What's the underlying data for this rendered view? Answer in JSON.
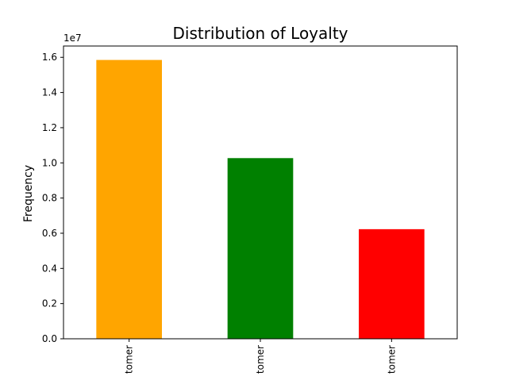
{
  "chart_data": {
    "type": "bar",
    "title": "Distribution of Loyalty",
    "xlabel": "",
    "ylabel": "Frequency",
    "y_offset_label": "1e7",
    "categories": [
      "tomer",
      "tomer",
      "tomer"
    ],
    "values": [
      15850000,
      10270000,
      6230000
    ],
    "bar_colors": [
      "#ffa500",
      "#008000",
      "#ff0000"
    ],
    "ylim": [
      0,
      16642500
    ],
    "yticks": [
      0,
      2000000,
      4000000,
      6000000,
      8000000,
      10000000,
      12000000,
      14000000,
      16000000
    ],
    "ytick_labels": [
      "0.0",
      "0.2",
      "0.4",
      "0.6",
      "0.8",
      "1.0",
      "1.2",
      "1.4",
      "1.6"
    ],
    "grid": false,
    "legend": false
  }
}
